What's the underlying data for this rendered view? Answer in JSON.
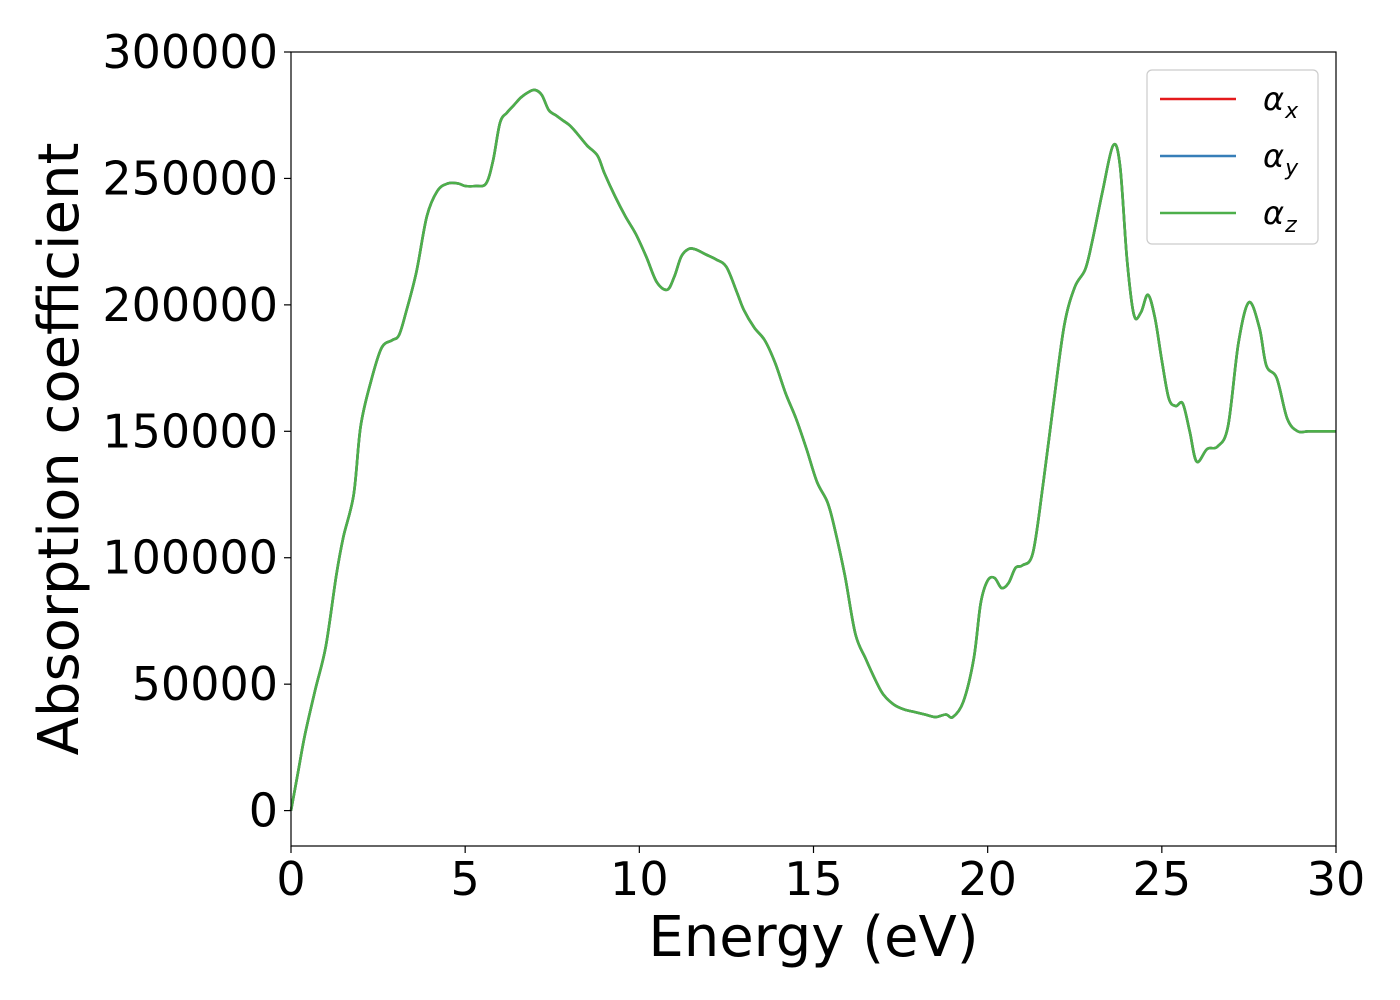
{
  "chart_data": {
    "type": "line",
    "title": "",
    "xlabel": "Energy (eV)",
    "ylabel": "Absorption coefficient",
    "xlim": [
      0,
      30
    ],
    "ylim": [
      -14000,
      300000
    ],
    "x_ticks": [
      "0",
      "5",
      "10",
      "15",
      "20",
      "25",
      "30"
    ],
    "y_ticks": [
      "0",
      "50000",
      "100000",
      "150000",
      "200000",
      "250000",
      "300000"
    ],
    "grid": false,
    "legend_position": "top-right",
    "x": [
      0,
      0.2,
      0.4,
      0.7,
      1.0,
      1.3,
      1.5,
      1.8,
      2.0,
      2.3,
      2.6,
      2.9,
      3.1,
      3.3,
      3.6,
      3.9,
      4.2,
      4.5,
      4.8,
      5.0,
      5.3,
      5.6,
      5.8,
      6.0,
      6.2,
      6.4,
      6.6,
      6.8,
      7.0,
      7.2,
      7.4,
      7.6,
      7.8,
      8.0,
      8.2,
      8.5,
      8.8,
      9.0,
      9.3,
      9.6,
      9.9,
      10.2,
      10.5,
      10.8,
      11.0,
      11.2,
      11.4,
      11.6,
      11.9,
      12.2,
      12.5,
      12.8,
      13.0,
      13.3,
      13.6,
      13.9,
      14.2,
      14.5,
      14.8,
      15.1,
      15.4,
      15.6,
      15.9,
      16.2,
      16.5,
      16.8,
      17.0,
      17.3,
      17.6,
      17.9,
      18.2,
      18.5,
      18.8,
      19.0,
      19.3,
      19.6,
      19.8,
      20.0,
      20.2,
      20.4,
      20.6,
      20.8,
      21.0,
      21.3,
      21.6,
      21.9,
      22.2,
      22.5,
      22.8,
      23.0,
      23.3,
      23.6,
      23.8,
      24.0,
      24.2,
      24.4,
      24.6,
      24.8,
      25.0,
      25.2,
      25.4,
      25.6,
      25.8,
      26.0,
      26.3,
      26.6,
      26.9,
      27.2,
      27.5,
      27.8,
      28.0,
      28.3,
      28.6,
      28.9,
      29.2,
      29.5,
      29.8,
      30.0
    ],
    "series": [
      {
        "name": "α_x",
        "color": "#e41a1c",
        "values": [
          0,
          15000,
          30000,
          48000,
          65000,
          93000,
          108000,
          125000,
          152000,
          170000,
          183000,
          186000,
          188000,
          197000,
          213000,
          235000,
          245000,
          248000,
          248000,
          247000,
          247000,
          248000,
          257000,
          272000,
          276000,
          279000,
          282000,
          284000,
          285000,
          283000,
          277000,
          275000,
          273000,
          271000,
          268000,
          263000,
          259000,
          252000,
          243000,
          235000,
          228000,
          219000,
          209000,
          206000,
          211000,
          219000,
          222000,
          222000,
          220000,
          218000,
          215000,
          205000,
          198000,
          191000,
          186000,
          177000,
          165000,
          155000,
          143000,
          130000,
          122000,
          112000,
          93000,
          70000,
          60000,
          51000,
          46000,
          42000,
          40000,
          39000,
          38000,
          37000,
          38000,
          37000,
          43000,
          60000,
          82000,
          91000,
          92000,
          88000,
          90000,
          96000,
          97000,
          102000,
          130000,
          162000,
          192000,
          207000,
          214000,
          225000,
          245000,
          263000,
          255000,
          218000,
          196000,
          197000,
          204000,
          195000,
          178000,
          163000,
          160000,
          161000,
          150000,
          138000,
          143000,
          144000,
          152000,
          185000,
          201000,
          191000,
          176000,
          171000,
          155000,
          150000,
          150000,
          150000,
          150000,
          150000
        ]
      },
      {
        "name": "α_y",
        "color": "#377eb8",
        "values": [
          0,
          15000,
          30000,
          48000,
          65000,
          93000,
          108000,
          125000,
          152000,
          170000,
          183000,
          186000,
          188000,
          197000,
          213000,
          235000,
          245000,
          248000,
          248000,
          247000,
          247000,
          248000,
          257000,
          272000,
          276000,
          279000,
          282000,
          284000,
          285000,
          283000,
          277000,
          275000,
          273000,
          271000,
          268000,
          263000,
          259000,
          252000,
          243000,
          235000,
          228000,
          219000,
          209000,
          206000,
          211000,
          219000,
          222000,
          222000,
          220000,
          218000,
          215000,
          205000,
          198000,
          191000,
          186000,
          177000,
          165000,
          155000,
          143000,
          130000,
          122000,
          112000,
          93000,
          70000,
          60000,
          51000,
          46000,
          42000,
          40000,
          39000,
          38000,
          37000,
          38000,
          37000,
          43000,
          60000,
          82000,
          91000,
          92000,
          88000,
          90000,
          96000,
          97000,
          102000,
          130000,
          162000,
          192000,
          207000,
          214000,
          225000,
          245000,
          263000,
          255000,
          218000,
          196000,
          197000,
          204000,
          195000,
          178000,
          163000,
          160000,
          161000,
          150000,
          138000,
          143000,
          144000,
          152000,
          185000,
          201000,
          191000,
          176000,
          171000,
          155000,
          150000,
          150000,
          150000,
          150000,
          150000
        ]
      },
      {
        "name": "α_z",
        "color": "#4daf4a",
        "values": [
          0,
          15000,
          30000,
          48000,
          65000,
          93000,
          108000,
          125000,
          152000,
          170000,
          183000,
          186000,
          188000,
          197000,
          213000,
          235000,
          245000,
          248000,
          248000,
          247000,
          247000,
          248000,
          257000,
          272000,
          276000,
          279000,
          282000,
          284000,
          285000,
          283000,
          277000,
          275000,
          273000,
          271000,
          268000,
          263000,
          259000,
          252000,
          243000,
          235000,
          228000,
          219000,
          209000,
          206000,
          211000,
          219000,
          222000,
          222000,
          220000,
          218000,
          215000,
          205000,
          198000,
          191000,
          186000,
          177000,
          165000,
          155000,
          143000,
          130000,
          122000,
          112000,
          93000,
          70000,
          60000,
          51000,
          46000,
          42000,
          40000,
          39000,
          38000,
          37000,
          38000,
          37000,
          43000,
          60000,
          82000,
          91000,
          92000,
          88000,
          90000,
          96000,
          97000,
          102000,
          130000,
          162000,
          192000,
          207000,
          214000,
          225000,
          245000,
          263000,
          255000,
          218000,
          196000,
          197000,
          204000,
          195000,
          178000,
          163000,
          160000,
          161000,
          150000,
          138000,
          143000,
          144000,
          152000,
          185000,
          201000,
          191000,
          176000,
          171000,
          155000,
          150000,
          150000,
          150000,
          150000,
          150000
        ]
      }
    ]
  }
}
